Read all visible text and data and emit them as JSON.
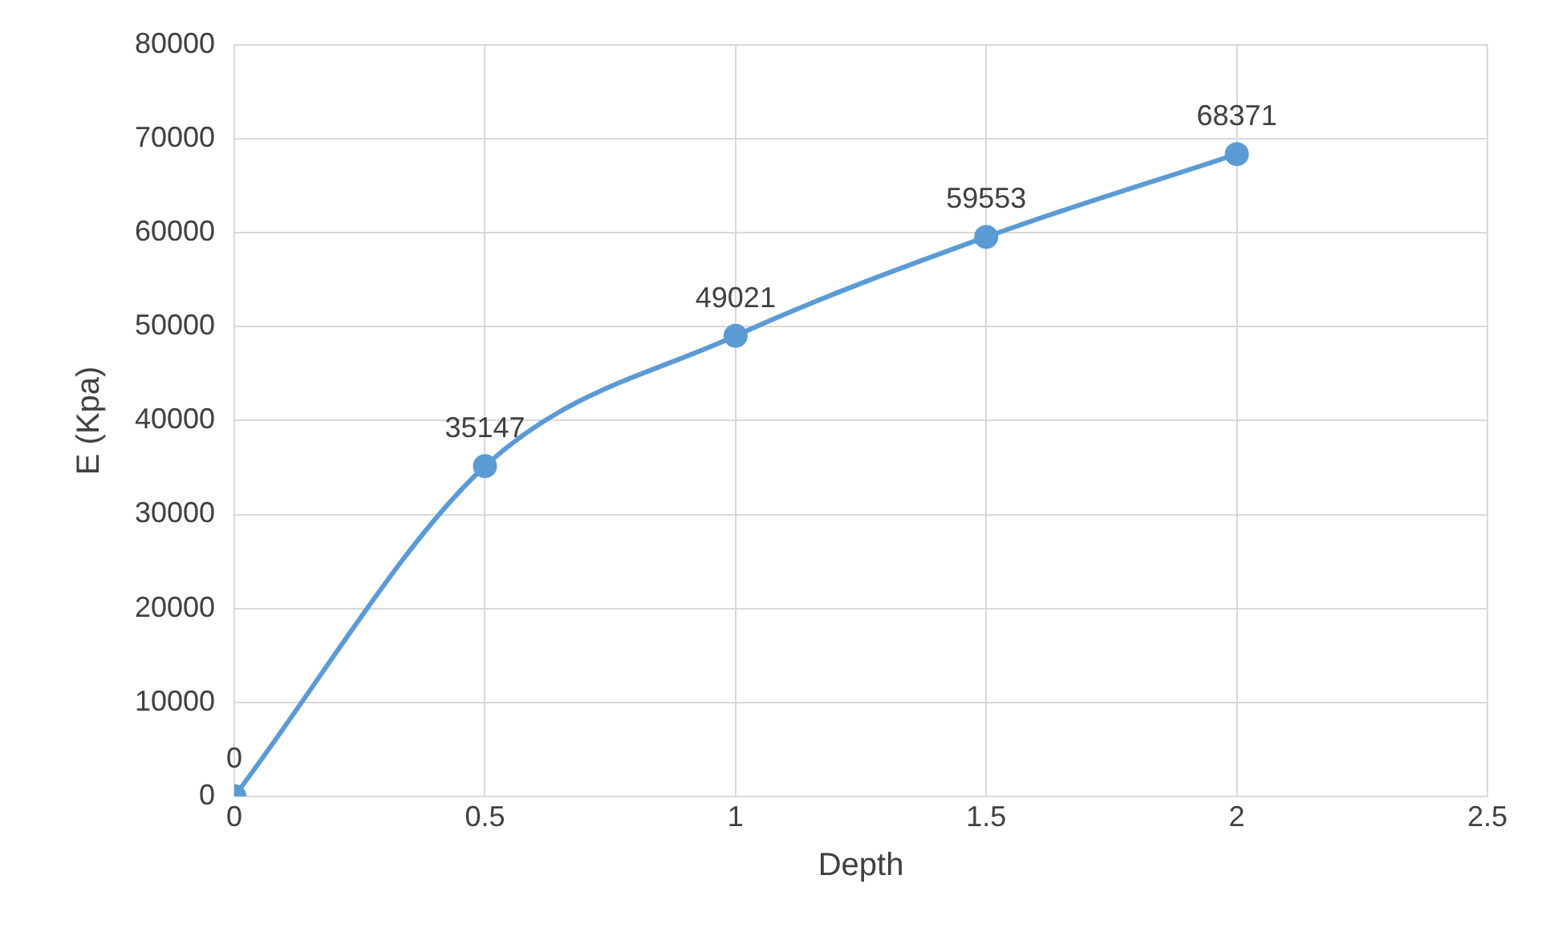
{
  "chart_data": {
    "type": "line",
    "xlabel": "Depth",
    "ylabel": "E (Kpa)",
    "x": [
      0,
      0.5,
      1,
      1.5,
      2
    ],
    "series": [
      {
        "color": "#5b9bd5",
        "values": [
          0,
          35147,
          49021,
          59553,
          68371
        ]
      }
    ],
    "xlim": [
      0,
      2.5
    ],
    "xticks": [
      0,
      0.5,
      1,
      1.5,
      2,
      2.5
    ],
    "ylim": [
      0,
      80000
    ],
    "yticks": [
      0,
      10000,
      20000,
      30000,
      40000,
      50000,
      60000,
      70000,
      80000
    ],
    "grid": true,
    "legend": false,
    "marker": "circle",
    "line_style": "solid",
    "data_labels": true
  }
}
